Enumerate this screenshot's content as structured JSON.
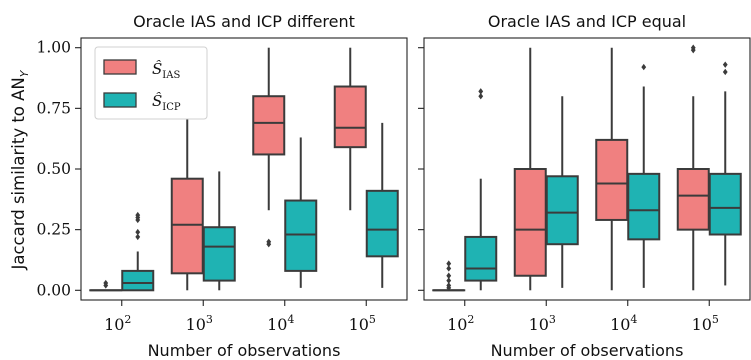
{
  "figure": {
    "ylabel": "Jaccard similarity to AN",
    "ylabel_sub": "Y",
    "legend": [
      {
        "symbol": "Ŝ",
        "sub": "IAS",
        "color": "#f08080"
      },
      {
        "symbol": "Ŝ",
        "sub": "ICP",
        "color": "#1fb3b3"
      }
    ]
  },
  "chart_data": [
    {
      "type": "box",
      "title": "Oracle IAS and ICP different",
      "xlabel": "Number of observations",
      "ylabel": "Jaccard similarity to AN_Y",
      "categories": [
        {
          "base": "10",
          "exp": "2"
        },
        {
          "base": "10",
          "exp": "3"
        },
        {
          "base": "10",
          "exp": "4"
        },
        {
          "base": "10",
          "exp": "5"
        }
      ],
      "ylim": [
        -0.04,
        1.04
      ],
      "yticks": [
        "0.00",
        "0.25",
        "0.50",
        "0.75",
        "1.00"
      ],
      "series": [
        {
          "name": "IAS",
          "color": "#f08080",
          "boxes": [
            {
              "q1": 0.0,
              "median": 0.0,
              "q3": 0.0,
              "whislo": 0.0,
              "whishi": 0.0,
              "fliers": [
                0.02,
                0.03
              ]
            },
            {
              "q1": 0.07,
              "median": 0.27,
              "q3": 0.46,
              "whislo": 0.0,
              "whishi": 0.73,
              "fliers": []
            },
            {
              "q1": 0.56,
              "median": 0.69,
              "q3": 0.8,
              "whislo": 0.33,
              "whishi": 1.0,
              "fliers": [
                0.19,
                0.2
              ]
            },
            {
              "q1": 0.59,
              "median": 0.67,
              "q3": 0.84,
              "whislo": 0.33,
              "whishi": 1.0,
              "fliers": []
            }
          ]
        },
        {
          "name": "ICP",
          "color": "#1fb3b3",
          "boxes": [
            {
              "q1": 0.0,
              "median": 0.03,
              "q3": 0.08,
              "whislo": 0.0,
              "whishi": 0.16,
              "fliers": [
                0.22,
                0.24,
                0.29,
                0.3,
                0.31
              ]
            },
            {
              "q1": 0.04,
              "median": 0.18,
              "q3": 0.26,
              "whislo": 0.0,
              "whishi": 0.49,
              "fliers": []
            },
            {
              "q1": 0.08,
              "median": 0.23,
              "q3": 0.37,
              "whislo": 0.01,
              "whishi": 0.63,
              "fliers": []
            },
            {
              "q1": 0.14,
              "median": 0.25,
              "q3": 0.41,
              "whislo": 0.01,
              "whishi": 0.69,
              "fliers": []
            }
          ]
        }
      ]
    },
    {
      "type": "box",
      "title": "Oracle IAS and ICP equal",
      "xlabel": "Number of observations",
      "ylabel": "",
      "categories": [
        {
          "base": "10",
          "exp": "2"
        },
        {
          "base": "10",
          "exp": "3"
        },
        {
          "base": "10",
          "exp": "4"
        },
        {
          "base": "10",
          "exp": "5"
        }
      ],
      "ylim": [
        -0.04,
        1.04
      ],
      "yticks": [],
      "series": [
        {
          "name": "IAS",
          "color": "#f08080",
          "boxes": [
            {
              "q1": 0.0,
              "median": 0.0,
              "q3": 0.0,
              "whislo": 0.0,
              "whishi": 0.0,
              "fliers": [
                0.01,
                0.02,
                0.04,
                0.06,
                0.09,
                0.11
              ]
            },
            {
              "q1": 0.06,
              "median": 0.25,
              "q3": 0.5,
              "whislo": 0.0,
              "whishi": 1.0,
              "fliers": []
            },
            {
              "q1": 0.29,
              "median": 0.44,
              "q3": 0.62,
              "whislo": 0.0,
              "whishi": 1.0,
              "fliers": []
            },
            {
              "q1": 0.25,
              "median": 0.39,
              "q3": 0.5,
              "whislo": 0.0,
              "whishi": 0.8,
              "fliers": [
                0.99,
                1.0
              ]
            }
          ]
        },
        {
          "name": "ICP",
          "color": "#1fb3b3",
          "boxes": [
            {
              "q1": 0.04,
              "median": 0.09,
              "q3": 0.22,
              "whislo": 0.0,
              "whishi": 0.46,
              "fliers": [
                0.8,
                0.82
              ]
            },
            {
              "q1": 0.19,
              "median": 0.32,
              "q3": 0.47,
              "whislo": 0.01,
              "whishi": 0.8,
              "fliers": []
            },
            {
              "q1": 0.21,
              "median": 0.33,
              "q3": 0.48,
              "whislo": 0.01,
              "whishi": 0.84,
              "fliers": [
                0.92
              ]
            },
            {
              "q1": 0.23,
              "median": 0.34,
              "q3": 0.48,
              "whislo": 0.02,
              "whishi": 0.82,
              "fliers": [
                0.9,
                0.93
              ]
            }
          ]
        }
      ]
    }
  ]
}
